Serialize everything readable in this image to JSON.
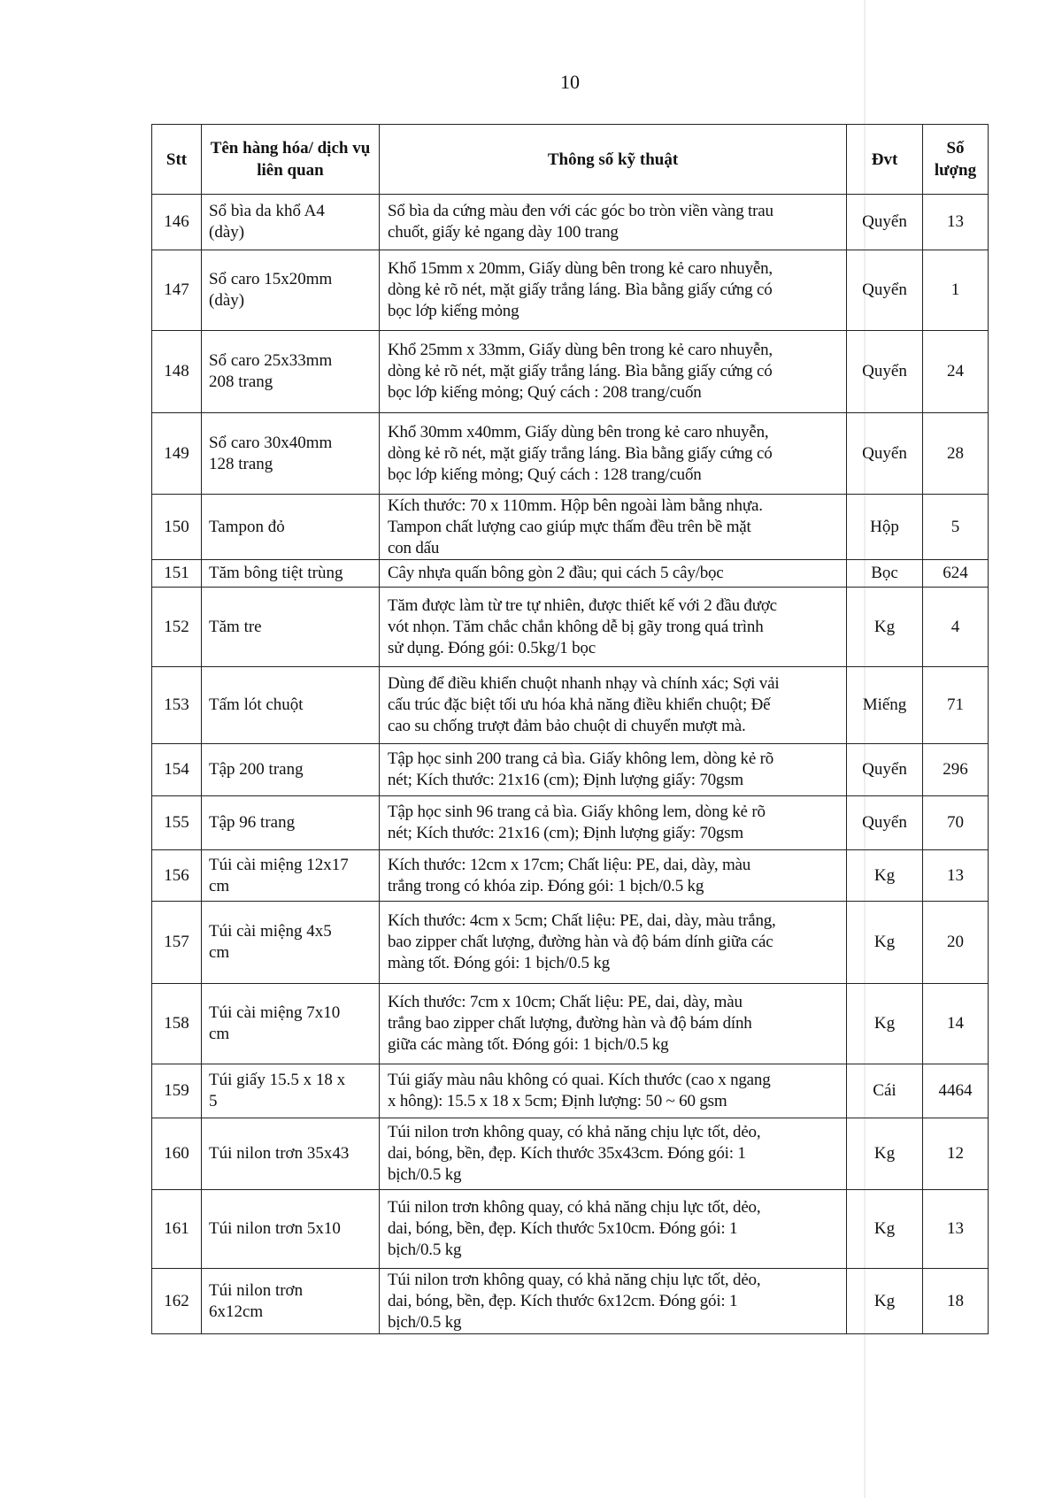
{
  "page_number": "10",
  "table": {
    "headers": {
      "stt": "Stt",
      "name": "Tên hàng hóa/ dịch vụ liên quan",
      "spec": "Thông số kỹ thuật",
      "unit": "Đvt",
      "qty": "Số lượng"
    },
    "rows": [
      {
        "stt": "146",
        "name": "Sổ bìa da khổ A4\n(dày)",
        "spec": "Sổ bìa da cứng màu đen với các góc bo tròn viền vàng trau\nchuốt, giấy kẻ ngang dày 100 trang",
        "unit": "Quyển",
        "qty": "13"
      },
      {
        "stt": "147",
        "name": "Sổ caro 15x20mm\n(dày)",
        "spec": "Khổ 15mm x 20mm, Giấy dùng bên trong kẻ caro nhuyễn,\ndòng kẻ rõ nét, mặt giấy trắng láng. Bìa bằng giấy cứng có\nbọc lớp kiếng mỏng",
        "unit": "Quyển",
        "qty": "1"
      },
      {
        "stt": "148",
        "name": "Sổ caro 25x33mm\n208 trang",
        "spec": "Khổ 25mm x 33mm, Giấy dùng bên trong kẻ caro nhuyễn,\ndòng kẻ rõ nét, mặt giấy trắng láng. Bìa bằng giấy cứng có\nbọc lớp kiếng mỏng; Quý cách : 208 trang/cuốn",
        "unit": "Quyển",
        "qty": "24"
      },
      {
        "stt": "149",
        "name": "Sổ caro 30x40mm\n128 trang",
        "spec": "Khổ 30mm x40mm, Giấy dùng bên trong kẻ caro nhuyễn,\ndòng kẻ rõ nét, mặt giấy trắng láng. Bìa bằng giấy cứng có\nbọc lớp kiếng mỏng; Quý cách : 128 trang/cuốn",
        "unit": "Quyển",
        "qty": "28"
      },
      {
        "stt": "150",
        "name": "Tampon đỏ",
        "spec": "Kích thước: 70 x 110mm. Hộp bên ngoài làm bằng nhựa.\nTampon chất lượng cao giúp mực thấm đều trên bề mặt\ncon dấu",
        "unit": "Hộp",
        "qty": "5"
      },
      {
        "stt": "151",
        "name": "Tăm bông tiệt trùng",
        "spec": "Cây nhựa quấn bông gòn 2 đầu; qui cách 5 cây/bọc",
        "unit": "Bọc",
        "qty": "624"
      },
      {
        "stt": "152",
        "name": "Tăm tre",
        "spec": "Tăm được làm từ tre tự nhiên, được thiết kế với 2 đầu được\nvót nhọn. Tăm chắc chắn không dễ bị gãy trong quá trình\nsử dụng. Đóng gói: 0.5kg/1 bọc",
        "unit": "Kg",
        "qty": "4"
      },
      {
        "stt": "153",
        "name": "Tấm lót chuột",
        "spec": "Dùng để điều khiển chuột nhanh nhạy và chính xác; Sợi vải\ncấu trúc đặc biệt tối ưu hóa khả năng điều khiển chuột; Đế\ncao su chống trượt đảm bảo chuột di chuyển mượt mà.",
        "unit": "Miếng",
        "qty": "71"
      },
      {
        "stt": "154",
        "name": "Tập 200 trang",
        "spec": "Tập học sinh 200 trang cả bìa. Giấy không lem, dòng kẻ rõ\nnét; Kích thước: 21x16 (cm); Định lượng giấy: 70gsm",
        "unit": "Quyển",
        "qty": "296"
      },
      {
        "stt": "155",
        "name": "Tập 96 trang",
        "spec": "Tập học sinh 96 trang cả bìa. Giấy không lem, dòng kẻ rõ\nnét; Kích thước: 21x16 (cm); Định lượng giấy: 70gsm",
        "unit": "Quyển",
        "qty": "70"
      },
      {
        "stt": "156",
        "name": "Túi cài miệng 12x17\ncm",
        "spec": "Kích thước: 12cm x 17cm; Chất liệu: PE, dai, dày, màu\ntrắng trong có khóa zip. Đóng gói: 1 bịch/0.5 kg",
        "unit": "Kg",
        "qty": "13"
      },
      {
        "stt": "157",
        "name": "Túi cài miệng 4x5\ncm",
        "spec": "Kích thước: 4cm x 5cm; Chất liệu: PE, dai, dày, màu trắng,\nbao zipper chất lượng, đường hàn và độ bám dính giữa các\nmàng tốt. Đóng gói: 1 bịch/0.5 kg",
        "unit": "Kg",
        "qty": "20"
      },
      {
        "stt": "158",
        "name": "Túi cài miệng 7x10\ncm",
        "spec": "Kích thước: 7cm x 10cm; Chất liệu: PE, dai, dày, màu\ntrắng bao zipper chất lượng, đường hàn và độ bám dính\ngiữa các màng tốt. Đóng gói: 1 bịch/0.5 kg",
        "unit": "Kg",
        "qty": "14"
      },
      {
        "stt": "159",
        "name": "Túi giấy 15.5 x 18 x\n5",
        "spec": "Túi giấy màu nâu không có quai. Kích thước (cao x ngang\nx hông): 15.5 x 18 x 5cm; Định lượng: 50 ~ 60 gsm",
        "unit": "Cái",
        "qty": "4464"
      },
      {
        "stt": "160",
        "name": "Túi nilon trơn 35x43",
        "spec": " Túi nilon trơn không quay, có khả năng chịu lực tốt, dẻo,\ndai, bóng, bền, đẹp. Kích thước 35x43cm. Đóng gói: 1\nbịch/0.5 kg",
        "unit": "Kg",
        "qty": "12"
      },
      {
        "stt": "161",
        "name": "Túi nilon trơn 5x10",
        "spec": " Túi nilon trơn không quay, có khả năng chịu lực tốt, dẻo,\ndai, bóng, bền, đẹp. Kích thước 5x10cm. Đóng gói: 1\nbịch/0.5 kg",
        "unit": "Kg",
        "qty": "13"
      },
      {
        "stt": "162",
        "name": "Túi nilon trơn\n6x12cm",
        "spec": " Túi nilon trơn không quay, có khả năng chịu lực tốt, dẻo,\ndai, bóng, bền, đẹp. Kích thước 6x12cm. Đóng gói: 1\nbịch/0.5 kg",
        "unit": "Kg",
        "qty": "18"
      }
    ]
  }
}
